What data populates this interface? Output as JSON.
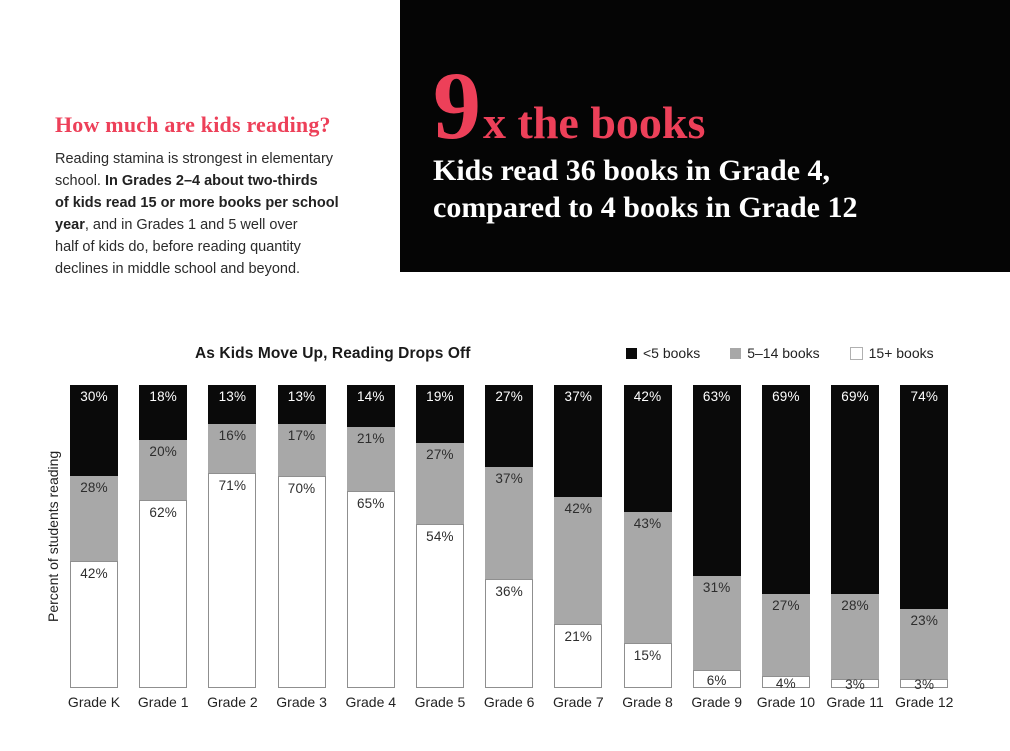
{
  "page": {
    "background": "#ffffff"
  },
  "intro": {
    "heading": "How much are kids reading?",
    "body_pre": "Reading stamina is strongest in elementary\nschool. ",
    "body_bold": "In Grades 2–4 about two-thirds\nof kids read 15 or more books per school\nyear",
    "body_post": ", and in Grades 1 and 5 well over\nhalf of kids do, before reading quantity\ndeclines in middle school and beyond."
  },
  "hero": {
    "background": "#050505",
    "accent_color": "#ed4059",
    "multiplier": "9",
    "suffix": "x the books",
    "subtitle": "Kids read 36 books in Grade 4,\ncompared to 4 books in Grade 12"
  },
  "chart_data": {
    "type": "stacked-bar",
    "title": "As Kids Move Up, Reading Drops Off",
    "ylabel": "Percent of students reading",
    "xlabel": "",
    "ylim": [
      0,
      100
    ],
    "grid": false,
    "legend_position": "top-right",
    "value_suffix": "%",
    "categories": [
      "Grade K",
      "Grade 1",
      "Grade 2",
      "Grade 3",
      "Grade 4",
      "Grade 5",
      "Grade 6",
      "Grade 7",
      "Grade 8",
      "Grade 9",
      "Grade 10",
      "Grade 11",
      "Grade 12"
    ],
    "series": [
      {
        "name": "<5 books",
        "key": "under-5-books",
        "color": "#0a0a0a",
        "text_color": "#ffffff",
        "values": [
          30,
          18,
          13,
          13,
          14,
          19,
          27,
          37,
          42,
          63,
          69,
          69,
          74
        ]
      },
      {
        "name": "5–14 books",
        "key": "5-14-books",
        "color": "#a8a8a8",
        "text_color": "#2d2d2d",
        "values": [
          28,
          20,
          16,
          17,
          21,
          27,
          37,
          42,
          43,
          31,
          27,
          28,
          23
        ]
      },
      {
        "name": "15+ books",
        "key": "15-plus-books",
        "color": "#ffffff",
        "text_color": "#2d2d2d",
        "swatch_border": "#b0b0b0",
        "values": [
          42,
          62,
          71,
          70,
          65,
          54,
          36,
          21,
          15,
          6,
          4,
          3,
          3
        ]
      }
    ]
  }
}
